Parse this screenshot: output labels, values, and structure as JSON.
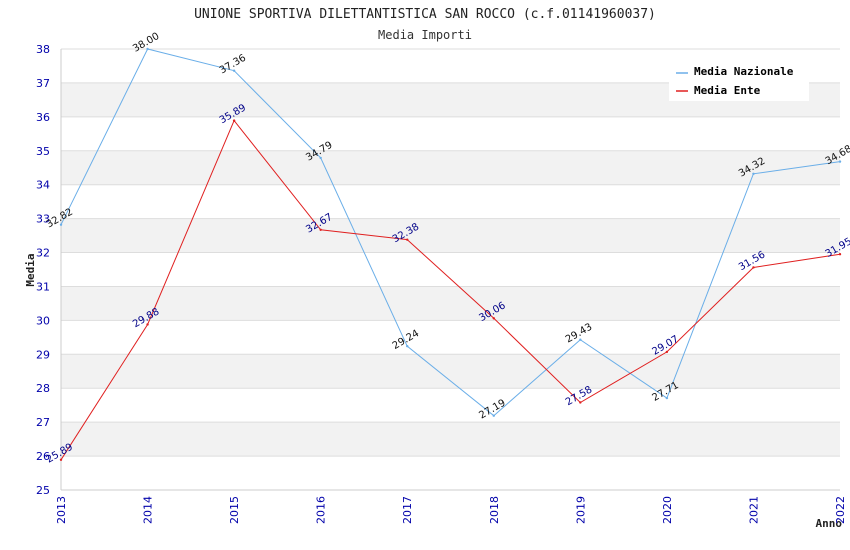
{
  "chart_data": {
    "type": "line",
    "title": "UNIONE SPORTIVA DILETTANTISTICA SAN ROCCO (c.f.01141960037)",
    "subtitle": "Media Importi",
    "xlabel": "Anno",
    "ylabel": "Media",
    "x": [
      "2013",
      "2014",
      "2015",
      "2016",
      "2017",
      "2018",
      "2019",
      "2020",
      "2021",
      "2022"
    ],
    "ylim": [
      25,
      38
    ],
    "yticks": [
      "25",
      "26",
      "27",
      "28",
      "29",
      "30",
      "31",
      "32",
      "33",
      "34",
      "35",
      "36",
      "37",
      "38"
    ],
    "grid": true,
    "legend_position": "top-right",
    "series": [
      {
        "name": "Media Nazionale",
        "color": "#6aaee8",
        "values": [
          32.82,
          38.0,
          37.36,
          34.79,
          29.24,
          27.19,
          29.43,
          27.71,
          34.32,
          34.68
        ],
        "labels": [
          "32.82",
          "38.00",
          "37.36",
          "34.79",
          "29.24",
          "27.19",
          "29.43",
          "27.71",
          "34.32",
          "34.68"
        ]
      },
      {
        "name": "Media Ente",
        "color": "#e02020",
        "values": [
          25.89,
          29.88,
          35.89,
          32.67,
          32.38,
          30.06,
          27.58,
          29.07,
          31.56,
          31.95
        ],
        "labels": [
          "25.89",
          "29.88",
          "35.89",
          "32.67",
          "32.38",
          "30.06",
          "27.58",
          "29.07",
          "31.56",
          "31.95"
        ]
      }
    ]
  }
}
